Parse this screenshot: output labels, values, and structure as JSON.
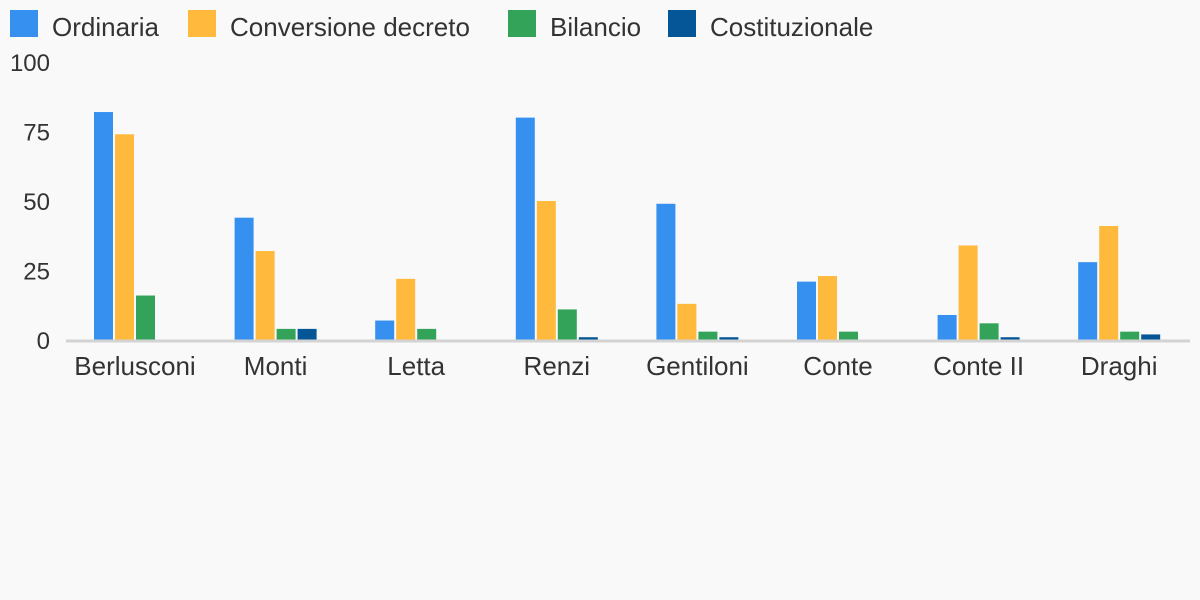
{
  "chart_data": {
    "type": "bar",
    "categories": [
      "Berlusconi",
      "Monti",
      "Letta",
      "Renzi",
      "Gentiloni",
      "Conte",
      "Conte II",
      "Draghi"
    ],
    "series": [
      {
        "name": "Ordinaria",
        "color": "#3590f0",
        "values": [
          82,
          44,
          7,
          80,
          49,
          21,
          9,
          28
        ]
      },
      {
        "name": "Conversione decreto",
        "color": "#ffb93c",
        "values": [
          74,
          32,
          22,
          50,
          13,
          23,
          34,
          41
        ]
      },
      {
        "name": "Bilancio",
        "color": "#33a35a",
        "values": [
          16,
          4,
          4,
          11,
          3,
          3,
          6,
          3
        ]
      },
      {
        "name": "Costituzionale",
        "color": "#045696",
        "values": [
          0,
          4,
          0,
          1,
          1,
          0,
          1,
          2
        ]
      }
    ],
    "yticks": [
      "0",
      "25",
      "50",
      "75",
      "100"
    ],
    "ylim": [
      0,
      100
    ],
    "legend_position": "top-left",
    "grid": false
  }
}
